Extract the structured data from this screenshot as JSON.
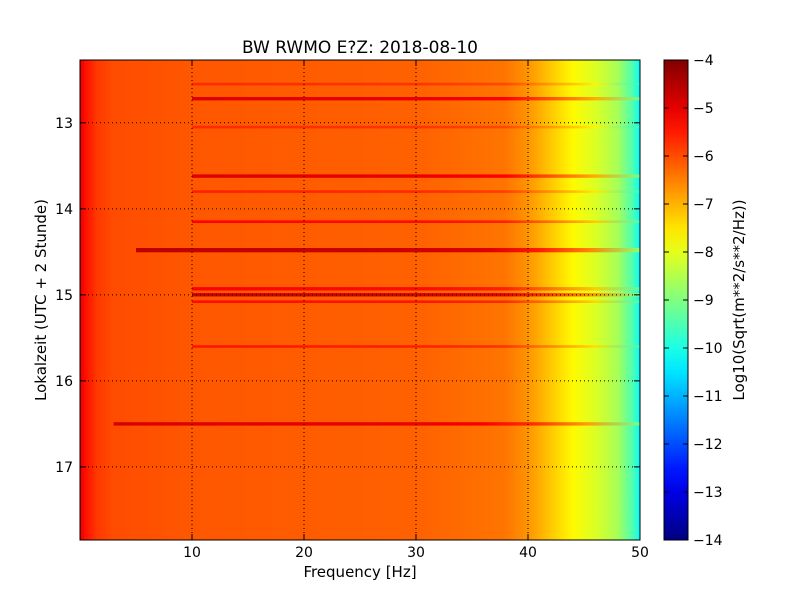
{
  "chart_data": {
    "type": "heatmap",
    "title": "BW RWMO E?Z: 2018-08-10",
    "xlabel": "Frequency [Hz]",
    "ylabel": "Lokalzeit (UTC + 2 Stunde)",
    "xlim": [
      0,
      50
    ],
    "ylim": [
      12.27,
      17.85
    ],
    "y_inverted": true,
    "x_ticks": [
      10,
      20,
      30,
      40,
      50
    ],
    "x_tick_labels": [
      "10",
      "20",
      "30",
      "40",
      "50"
    ],
    "y_ticks": [
      13,
      14,
      15,
      16,
      17
    ],
    "y_tick_labels": [
      "13",
      "14",
      "15",
      "16",
      "17"
    ],
    "grid": true,
    "grid_style": "dotted",
    "colorscale": "jet",
    "colorbar": {
      "label": "Log10(Sqrt(m**2/s**2/Hz))",
      "range": [
        -14,
        -4
      ],
      "ticks": [
        -4,
        -5,
        -6,
        -7,
        -8,
        -9,
        -10,
        -11,
        -12,
        -13,
        -14
      ],
      "tick_labels": [
        "−4",
        "−5",
        "−6",
        "−7",
        "−8",
        "−9",
        "−10",
        "−11",
        "−12",
        "−13",
        "−14"
      ]
    },
    "background_level_by_frequency": {
      "frequency_hz": [
        0,
        0.5,
        1.5,
        3,
        10,
        20,
        30,
        38,
        40,
        42,
        44,
        46,
        48,
        49.5,
        50
      ],
      "value": [
        -5.0,
        -5.4,
        -5.8,
        -6.0,
        -6.1,
        -6.15,
        -6.2,
        -6.4,
        -6.7,
        -7.2,
        -7.7,
        -8.1,
        -8.6,
        -9.6,
        -10.3
      ]
    },
    "bands": [
      {
        "time": 12.72,
        "thickness": 0.04,
        "f_start": 10,
        "f_end": 50,
        "level": -5.0
      },
      {
        "time": 13.62,
        "thickness": 0.04,
        "f_start": 10,
        "f_end": 50,
        "level": -5.0
      },
      {
        "time": 14.15,
        "thickness": 0.03,
        "f_start": 10,
        "f_end": 50,
        "level": -5.3
      },
      {
        "time": 14.48,
        "thickness": 0.05,
        "f_start": 5,
        "f_end": 50,
        "level": -4.7
      },
      {
        "time": 14.93,
        "thickness": 0.04,
        "f_start": 10,
        "f_end": 50,
        "level": -5.3
      },
      {
        "time": 15.0,
        "thickness": 0.04,
        "f_start": 10,
        "f_end": 50,
        "level": -4.8
      },
      {
        "time": 15.08,
        "thickness": 0.03,
        "f_start": 10,
        "f_end": 50,
        "level": -5.4
      },
      {
        "time": 15.6,
        "thickness": 0.03,
        "f_start": 10,
        "f_end": 50,
        "level": -5.5
      },
      {
        "time": 16.5,
        "thickness": 0.04,
        "f_start": 3,
        "f_end": 50,
        "level": -5.0
      },
      {
        "time": 13.05,
        "thickness": 0.03,
        "f_start": 10,
        "f_end": 50,
        "level": -5.7
      },
      {
        "time": 13.8,
        "thickness": 0.03,
        "f_start": 10,
        "f_end": 50,
        "level": -5.6
      },
      {
        "time": 12.55,
        "thickness": 0.03,
        "f_start": 10,
        "f_end": 50,
        "level": -5.7
      }
    ]
  }
}
